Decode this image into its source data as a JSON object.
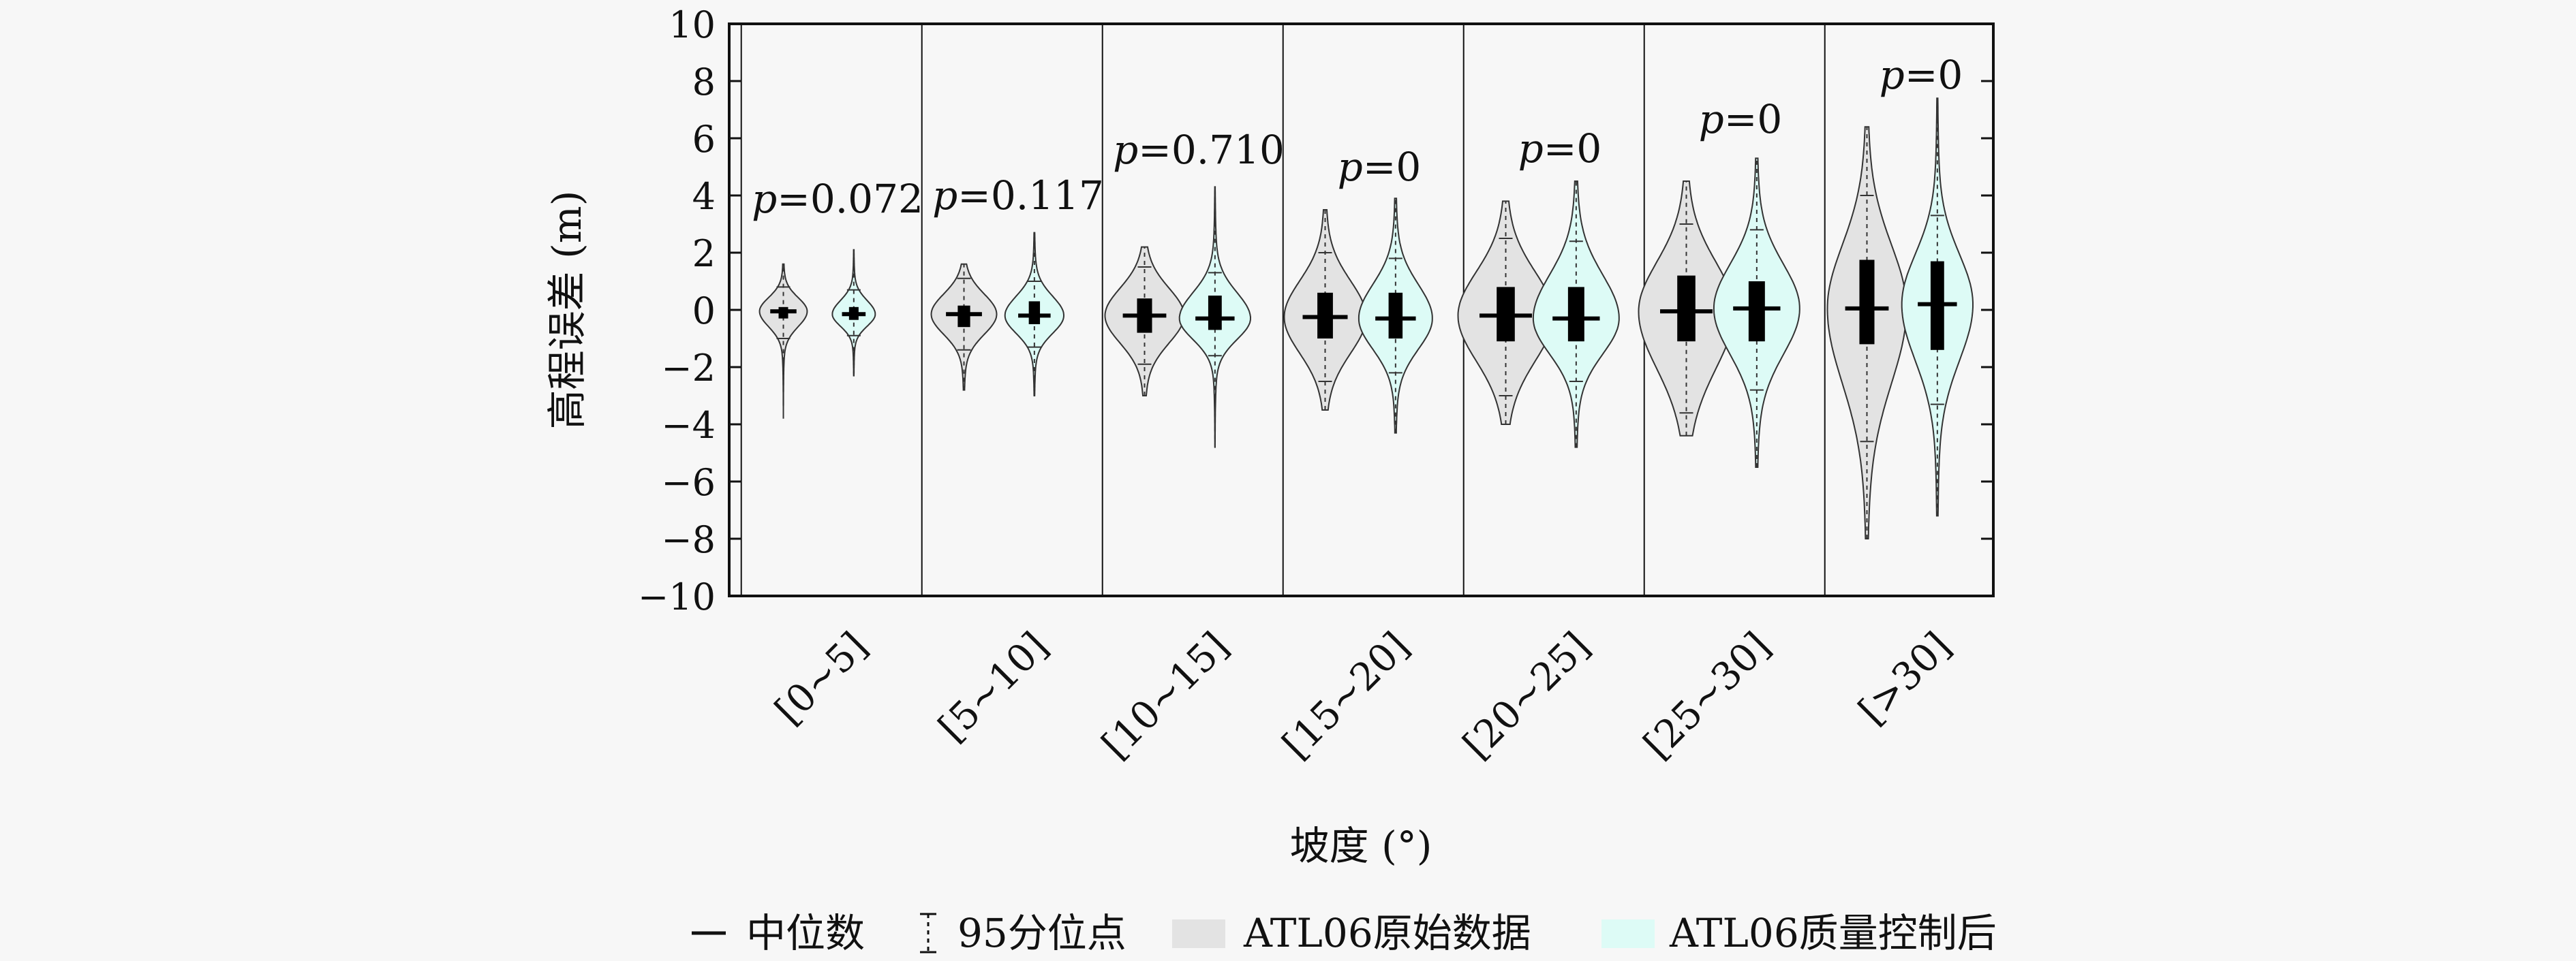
{
  "chart_data": {
    "type": "violin",
    "ylabel": "高程误差 (m)",
    "xlabel": "坡度 (°)",
    "ylim": [
      -10,
      10
    ],
    "yticks": [
      10,
      8,
      6,
      4,
      2,
      0,
      -2,
      -4,
      -6,
      -8,
      -10
    ],
    "categories": [
      "[0~5]",
      "[5~10]",
      "[10~15]",
      "[15~20]",
      "[20~25]",
      "[25~30]",
      "[>30]"
    ],
    "p_values": [
      "p=0.072",
      "p=0.117",
      "p=0.710",
      "p=0",
      "p=0",
      "p=0",
      "p=0"
    ],
    "series": [
      {
        "name": "ATL06原始数据",
        "fill": "#e3e3e3",
        "median": [
          -0.05,
          -0.15,
          -0.2,
          -0.25,
          -0.2,
          -0.05,
          0.05
        ],
        "q1": [
          -0.3,
          -0.6,
          -0.8,
          -1.0,
          -1.1,
          -1.1,
          -1.2
        ],
        "q3": [
          0.1,
          0.15,
          0.4,
          0.6,
          0.8,
          1.2,
          1.75
        ],
        "p_low": [
          -1.0,
          -1.4,
          -1.9,
          -2.5,
          -3.0,
          -3.6,
          -4.6
        ],
        "p_high": [
          0.8,
          1.1,
          1.5,
          2.0,
          2.5,
          3.0,
          4.0
        ],
        "min": [
          -3.8,
          -2.8,
          -3.0,
          -3.5,
          -4.0,
          -4.4,
          -8.0
        ],
        "max": [
          1.6,
          1.6,
          2.2,
          3.5,
          3.8,
          4.5,
          6.4
        ]
      },
      {
        "name": "ATL06质量控制后",
        "fill": "#ddfbf6",
        "median": [
          -0.15,
          -0.2,
          -0.3,
          -0.3,
          -0.3,
          0.05,
          0.2
        ],
        "q1": [
          -0.35,
          -0.5,
          -0.7,
          -1.0,
          -1.1,
          -1.1,
          -1.4
        ],
        "q3": [
          0.1,
          0.3,
          0.5,
          0.6,
          0.8,
          1.0,
          1.7
        ],
        "p_low": [
          -0.9,
          -1.3,
          -1.6,
          -2.2,
          -2.5,
          -2.8,
          -3.3
        ],
        "p_high": [
          0.7,
          1.0,
          1.3,
          1.8,
          2.4,
          2.8,
          3.3
        ],
        "min": [
          -2.3,
          -3.0,
          -4.8,
          -4.3,
          -4.8,
          -5.5,
          -7.2
        ],
        "max": [
          2.1,
          2.7,
          4.3,
          3.9,
          4.5,
          5.3,
          7.4
        ]
      }
    ],
    "legend": {
      "position": "bottom",
      "items": [
        {
          "label": "中位数",
          "kind": "median-line"
        },
        {
          "label": "95分位点",
          "kind": "percentile-marker"
        },
        {
          "label": "ATL06原始数据",
          "kind": "swatch",
          "color": "#e3e3e3"
        },
        {
          "label": "ATL06质量控制后",
          "kind": "swatch",
          "color": "#ddfbf6"
        }
      ]
    },
    "grid": false
  }
}
